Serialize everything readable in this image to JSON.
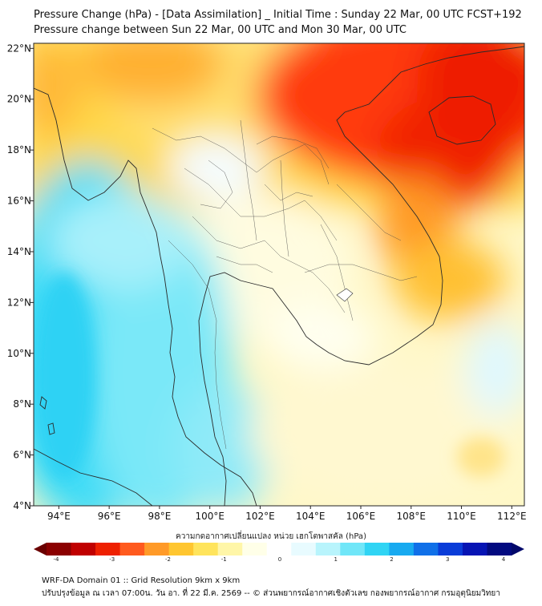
{
  "header": {
    "title_line1": "Pressure Change (hPa) - [Data Assimilation] _ Initial Time : Sunday 22 Mar, 00 UTC FCST+192",
    "title_line2": "Pressure change between Sun 22 Mar, 00 UTC and Mon 30 Mar, 00 UTC"
  },
  "map": {
    "lon_range": [
      93,
      112.5
    ],
    "lat_range": [
      4,
      22.2
    ],
    "lon_ticks": [
      "94°E",
      "96°E",
      "98°E",
      "100°E",
      "102°E",
      "104°E",
      "106°E",
      "108°E",
      "110°E",
      "112°E"
    ],
    "lat_ticks": [
      "4°N",
      "6°N",
      "8°N",
      "10°N",
      "12°N",
      "14°N",
      "16°N",
      "18°N",
      "20°N",
      "22°N"
    ]
  },
  "colorbar": {
    "label": "ความกดอากาศเปลี่ยนแปลง หน่วย เฮกโตพาสคัล (hPa)",
    "ticks": [
      "-4",
      "-3",
      "-2",
      "-1",
      "0",
      "1",
      "2",
      "3",
      "4"
    ],
    "colors": [
      "#8b0000",
      "#c00000",
      "#ee2000",
      "#ff5a1e",
      "#ff9a28",
      "#ffc630",
      "#ffe45c",
      "#fff6a8",
      "#ffffe8",
      "#ffffff",
      "#e8fbff",
      "#b8f4fc",
      "#70e6f8",
      "#30d4f4",
      "#18aaf0",
      "#1070e8",
      "#0a3cd8",
      "#0614b4",
      "#020a80"
    ]
  },
  "footer": {
    "line1": "WRF-DA Domain 01 :: Grid Resolution 9km x 9km",
    "line2": "ปรับปรุงข้อมูล ณ เวลา 07:00น. วัน อา. ที่ 22 มี.ค. 2569 -- © ส่วนพยากรณ์อากาศเชิงตัวเลข กองพยากรณ์อากาศ กรมอุตุนิยมวิทยา"
  }
}
